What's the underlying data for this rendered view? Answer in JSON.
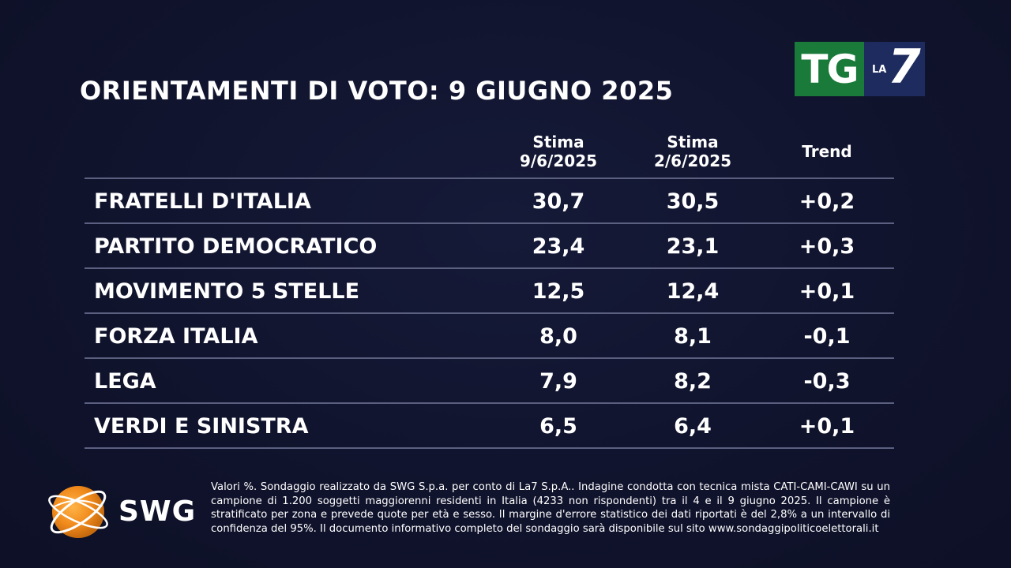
{
  "title": "ORIENTAMENTI DI VOTO: 9 GIUGNO 2025",
  "logos": {
    "broadcaster_tg": "TG",
    "broadcaster_la": "LA",
    "broadcaster_seven": "7",
    "pollster": "SWG"
  },
  "colors": {
    "background": "#10132c",
    "tg_green": "#1a7a3a",
    "la7_blue": "#1d2b5e",
    "swg_orange": "#f08a1c",
    "rule": "#5c6080"
  },
  "chart_data": {
    "type": "table",
    "title": "ORIENTAMENTI DI VOTO: 9 GIUGNO 2025",
    "columns": [
      {
        "line1": "Stima",
        "line2": "9/6/2025"
      },
      {
        "line1": "Stima",
        "line2": "2/6/2025"
      },
      {
        "line1": "Trend",
        "line2": ""
      }
    ],
    "rows": [
      {
        "party": "FRATELLI D'ITALIA",
        "current": "30,7",
        "previous": "30,5",
        "trend": "+0,2"
      },
      {
        "party": "PARTITO DEMOCRATICO",
        "current": "23,4",
        "previous": "23,1",
        "trend": "+0,3"
      },
      {
        "party": "MOVIMENTO 5 STELLE",
        "current": "12,5",
        "previous": "12,4",
        "trend": "+0,1"
      },
      {
        "party": "FORZA ITALIA",
        "current": "8,0",
        "previous": "8,1",
        "trend": "-0,1"
      },
      {
        "party": "LEGA",
        "current": "7,9",
        "previous": "8,2",
        "trend": "-0,3"
      },
      {
        "party": "VERDI E SINISTRA",
        "current": "6,5",
        "previous": "6,4",
        "trend": "+0,1"
      }
    ]
  },
  "footnote": "Valori %. Sondaggio realizzato da SWG S.p.a. per conto di La7 S.p.A.. Indagine condotta con tecnica mista CATI-CAMI-CAWI su un campione di 1.200 soggetti maggiorenni residenti in Italia (4233 non rispondenti) tra il 4 e il 9 giugno 2025. Il campione è stratificato per zona e prevede quote per età e sesso. Il margine d'errore statistico dei dati riportati è del 2,8% a un intervallo di confidenza del 95%. Il documento informativo completo del sondaggio sarà disponibile sul sito www.sondaggipoliticoelettorali.it"
}
